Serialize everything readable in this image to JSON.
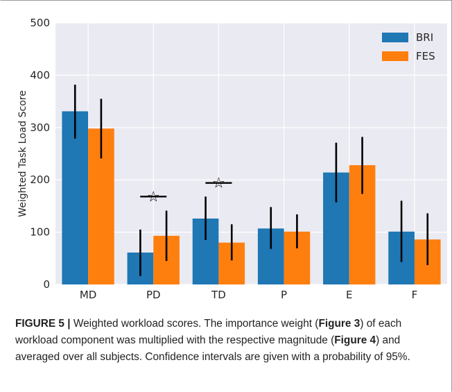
{
  "chart_data": {
    "type": "bar",
    "categories": [
      "MD",
      "PD",
      "TD",
      "P",
      "E",
      "F"
    ],
    "series": [
      {
        "name": "BRI",
        "color": "#1f77b4",
        "values": [
          331,
          61,
          126,
          107,
          214,
          101
        ],
        "ci_low": [
          279,
          16,
          85,
          68,
          157,
          43
        ],
        "ci_high": [
          382,
          105,
          168,
          148,
          271,
          160
        ]
      },
      {
        "name": "FES",
        "color": "#ff7f0e",
        "values": [
          298,
          93,
          80,
          101,
          228,
          86
        ],
        "ci_low": [
          241,
          45,
          46,
          69,
          173,
          37
        ],
        "ci_high": [
          355,
          141,
          115,
          134,
          282,
          136
        ]
      }
    ],
    "significance_markers": [
      {
        "category": "PD",
        "y": 168,
        "symbol": "☆"
      },
      {
        "category": "TD",
        "y": 194,
        "symbol": "☆"
      }
    ],
    "ylabel": "Weighted Task Load Score",
    "xlabel": "",
    "ylim": [
      0,
      500
    ],
    "yticks": [
      0,
      100,
      200,
      300,
      400,
      500
    ],
    "grid": true,
    "legend_position": "top-right",
    "background": "#eaeaf2"
  },
  "caption": {
    "figure_label": "FIGURE 5 |",
    "part1": " Weighted workload scores. The importance weight (",
    "ref1": "Figure 3",
    "part2": ") of each workload component was multiplied with the respective magnitude (",
    "ref2": "Figure 4",
    "part3": ") and averaged over all subjects. Confidence intervals are given with a probability of 95%."
  }
}
